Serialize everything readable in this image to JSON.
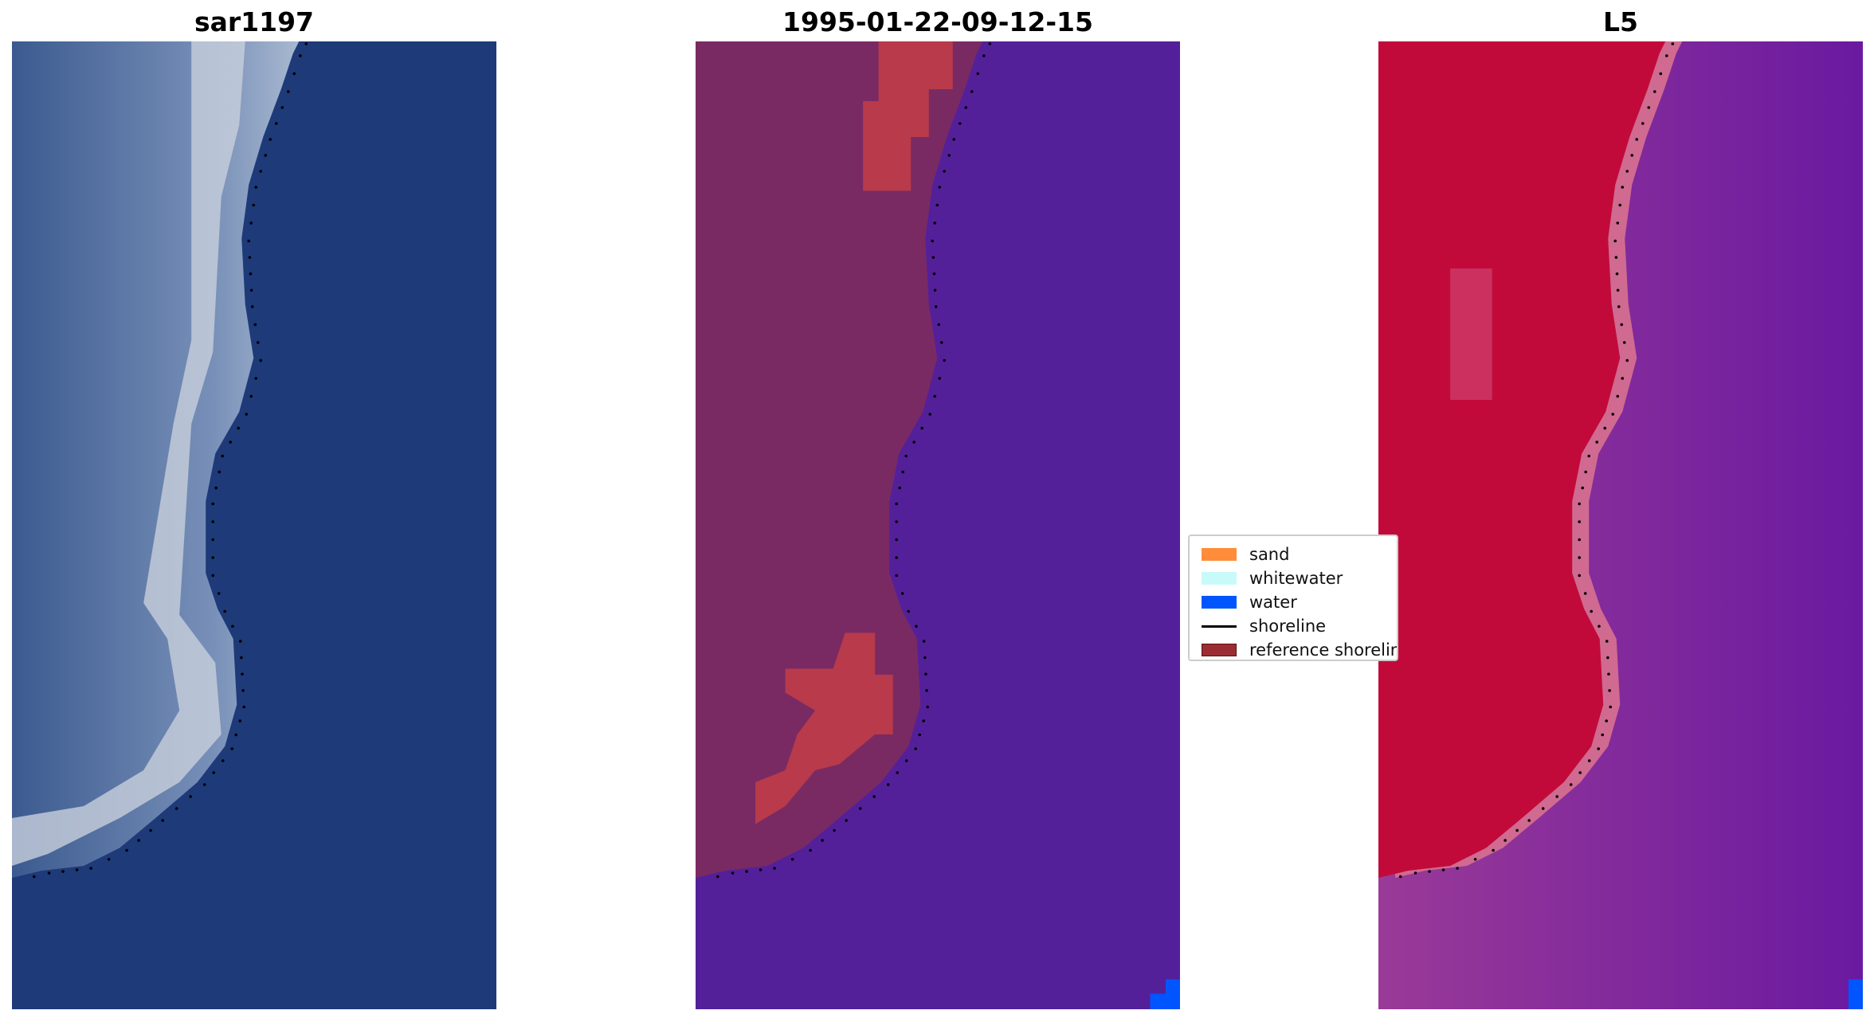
{
  "chart_data": [
    {
      "type": "image",
      "title": "sar1197",
      "colors": {
        "water": "#1e3a78",
        "beach": "#eef0e4",
        "land": "#5a78a8"
      },
      "overlay": "shoreline points"
    },
    {
      "type": "image",
      "title": "1995-01-22-09-12-15",
      "colors": {
        "water_class": "#54209a",
        "land": "#7a2a63",
        "reference_shoreline": "#b83a4b",
        "water_legend": "#0055ff"
      }
    },
    {
      "type": "image",
      "title": "L5",
      "colors": {
        "water": "#8a3aa0",
        "land": "#c20a3a",
        "edge": "#d06a90"
      }
    }
  ],
  "legend": {
    "placement": "center",
    "items": [
      {
        "label": "sand",
        "color": "#ff8c3a",
        "kind": "patch"
      },
      {
        "label": "whitewater",
        "color": "#c8fafa",
        "kind": "patch"
      },
      {
        "label": "water",
        "color": "#0055ff",
        "kind": "patch"
      },
      {
        "label": "shoreline",
        "color": "#000000",
        "kind": "line"
      },
      {
        "label": "reference shoreline",
        "color": "#9b2c33",
        "kind": "patch"
      }
    ]
  }
}
